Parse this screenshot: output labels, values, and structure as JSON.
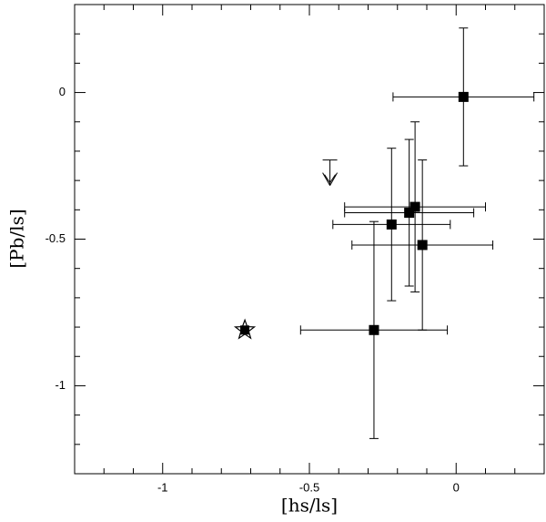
{
  "chart_data": {
    "type": "scatter",
    "x_label": "[hs/ls]",
    "y_label": "[Pb/ls]",
    "xlim": [
      -1.3,
      0.3
    ],
    "ylim": [
      -1.3,
      0.3
    ],
    "xticks": [
      -1,
      -0.5,
      0
    ],
    "yticks": [
      0,
      -0.5,
      -1
    ],
    "xminorticks": [
      -1.2,
      -1.1,
      -0.9,
      -0.8,
      -0.7,
      -0.6,
      -0.4,
      -0.3,
      -0.2,
      -0.1,
      0.1,
      0.2
    ],
    "yminorticks": [
      0.2,
      0.1,
      -0.1,
      -0.2,
      -0.3,
      -0.4,
      -0.6,
      -0.7,
      -0.8,
      -0.9,
      -1.1,
      -1.2
    ],
    "series": [
      {
        "marker": "square",
        "color": "#000000",
        "x": [
          0.025,
          -0.14,
          -0.16,
          -0.22,
          -0.115,
          -0.28
        ],
        "values": [
          -0.015,
          -0.39,
          -0.41,
          -0.45,
          -0.52,
          -0.81
        ],
        "xerr": [
          0.24,
          0.24,
          0.22,
          0.2,
          0.24,
          0.25
        ],
        "yerr": [
          0.235,
          0.29,
          0.25,
          0.26,
          0.29,
          0.37
        ]
      },
      {
        "marker": "star",
        "color": "#000000",
        "x": [
          -0.72
        ],
        "values": [
          -0.81
        ]
      },
      {
        "marker": "upper-limit",
        "color": "#000000",
        "x": [
          -0.43
        ],
        "values": [
          -0.23
        ]
      }
    ]
  }
}
